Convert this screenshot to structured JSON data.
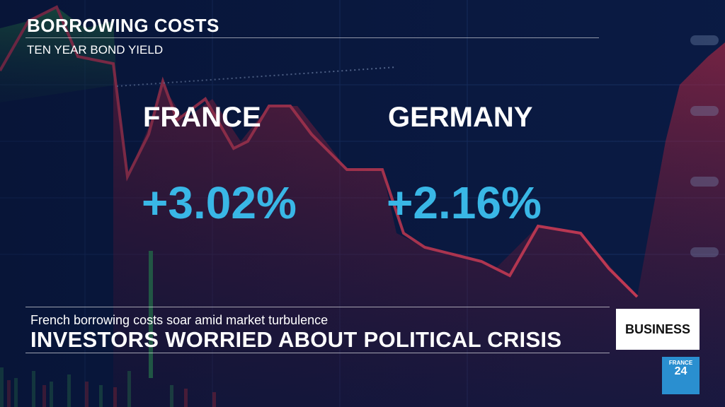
{
  "header": {
    "title": "BORROWING COSTS",
    "subtitle": "TEN YEAR BOND YIELD"
  },
  "yields": [
    {
      "country": "FRANCE",
      "value": "+3.02%"
    },
    {
      "country": "GERMANY",
      "value": "+2.16%"
    }
  ],
  "lower_third": {
    "subtitle": "French borrowing costs soar amid market turbulence",
    "headline": "INVESTORS WORRIED ABOUT POLITICAL CRISIS",
    "section": "BUSINESS"
  },
  "logo": {
    "line1": "FRANCE",
    "line2": "24"
  },
  "colors": {
    "value": "#39b7e6",
    "background": "#0a1a3a",
    "chart_red": "#d0303e",
    "chart_green": "#3aa35a"
  }
}
